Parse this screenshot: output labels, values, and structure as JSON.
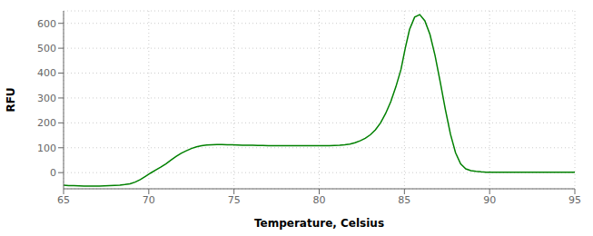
{
  "chart_data": {
    "type": "line",
    "xlabel": "Temperature, Celsius",
    "ylabel": "RFU",
    "color": "#008000",
    "grid": true,
    "xlim": [
      65,
      95
    ],
    "ylim": [
      -65,
      650
    ],
    "xticks": [
      65,
      70,
      75,
      80,
      85,
      90,
      95
    ],
    "yticks": [
      0,
      100,
      200,
      300,
      400,
      500,
      600
    ],
    "x": [
      65.0,
      65.3,
      65.6,
      65.9,
      66.2,
      66.5,
      66.8,
      67.1,
      67.4,
      67.7,
      68.0,
      68.3,
      68.6,
      68.9,
      69.2,
      69.5,
      69.8,
      70.1,
      70.4,
      70.7,
      71.0,
      71.3,
      71.6,
      71.9,
      72.2,
      72.5,
      72.8,
      73.1,
      73.4,
      73.7,
      74.0,
      74.3,
      74.6,
      74.9,
      75.2,
      75.5,
      75.8,
      76.1,
      76.4,
      76.7,
      77.0,
      77.3,
      77.6,
      77.9,
      78.2,
      78.5,
      78.8,
      79.1,
      79.4,
      79.7,
      80.0,
      80.3,
      80.6,
      80.9,
      81.2,
      81.5,
      81.8,
      82.1,
      82.4,
      82.7,
      83.0,
      83.3,
      83.6,
      83.9,
      84.2,
      84.5,
      84.8,
      85.05,
      85.3,
      85.6,
      85.9,
      86.2,
      86.5,
      86.8,
      87.1,
      87.4,
      87.7,
      88.0,
      88.3,
      88.6,
      88.9,
      89.2,
      89.5,
      89.8,
      90.1,
      90.4,
      90.7,
      91.0,
      91.5,
      92.0,
      92.5,
      93.0,
      93.5,
      94.0,
      94.5,
      95.0
    ],
    "values": [
      -50,
      -52,
      -52,
      -53,
      -54,
      -54,
      -54,
      -54,
      -53,
      -52,
      -51,
      -50,
      -48,
      -45,
      -38,
      -28,
      -15,
      -2,
      10,
      22,
      35,
      50,
      65,
      78,
      88,
      97,
      104,
      108,
      111,
      112,
      113,
      113,
      112,
      112,
      111,
      110,
      110,
      110,
      109,
      109,
      108,
      108,
      108,
      108,
      108,
      108,
      108,
      108,
      108,
      108,
      108,
      108,
      108,
      109,
      110,
      112,
      115,
      120,
      128,
      138,
      152,
      172,
      200,
      238,
      285,
      345,
      415,
      500,
      575,
      625,
      635,
      610,
      555,
      470,
      365,
      255,
      155,
      80,
      35,
      15,
      8,
      5,
      3,
      2,
      2,
      2,
      2,
      2,
      2,
      2,
      2,
      2,
      2,
      2,
      2,
      2
    ]
  }
}
